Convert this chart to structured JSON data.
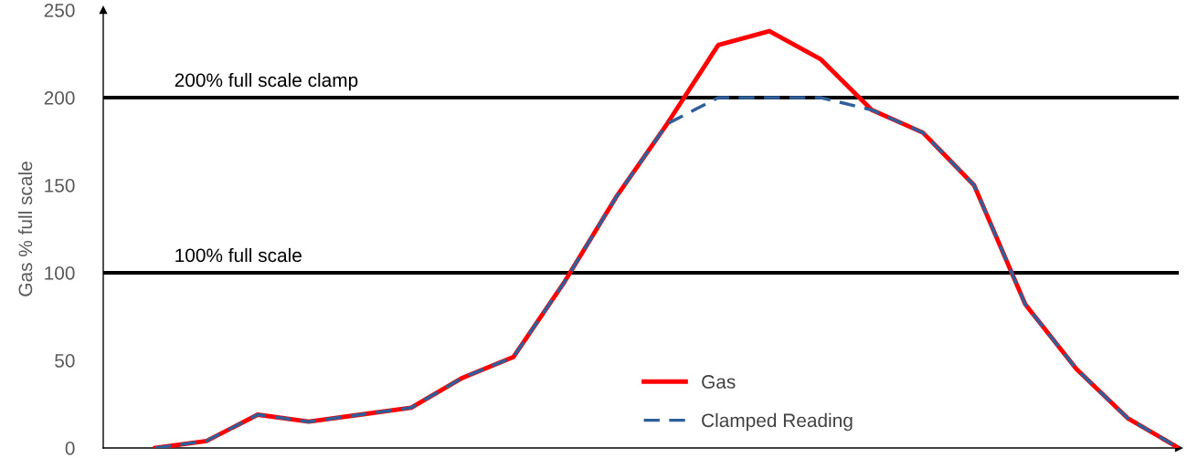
{
  "chart_data": {
    "type": "line",
    "categories": [
      null,
      null,
      null,
      null,
      null,
      null,
      null,
      null,
      null,
      null,
      null,
      null,
      null,
      null,
      null,
      null,
      null,
      null,
      null,
      null,
      null
    ],
    "series": [
      {
        "name": "Gas",
        "color": "#ff0000",
        "line_style": "solid",
        "values": [
          0,
          4,
          19,
          15,
          19,
          23,
          40,
          52,
          95,
          143,
          185,
          230,
          238,
          222,
          193,
          180,
          150,
          82,
          45,
          17,
          0
        ]
      },
      {
        "name": "Clamped Reading",
        "color": "#2e5f9a",
        "line_style": "dashed",
        "values": [
          0,
          4,
          19,
          15,
          19,
          23,
          40,
          52,
          95,
          143,
          185,
          200,
          200,
          200,
          193,
          180,
          150,
          82,
          45,
          17,
          0
        ]
      }
    ],
    "ylabel": "Gas % full scale",
    "ylim": [
      0,
      250
    ],
    "yticks": [
      0,
      50,
      100,
      150,
      200,
      250
    ],
    "ref_lines": [
      {
        "axis": "y",
        "value": 200,
        "label": "200% full scale clamp",
        "color": "#000000"
      },
      {
        "axis": "y",
        "value": 100,
        "label": "100% full scale",
        "color": "#000000"
      }
    ],
    "grid": false,
    "legend": "bottom",
    "marker": "none"
  }
}
